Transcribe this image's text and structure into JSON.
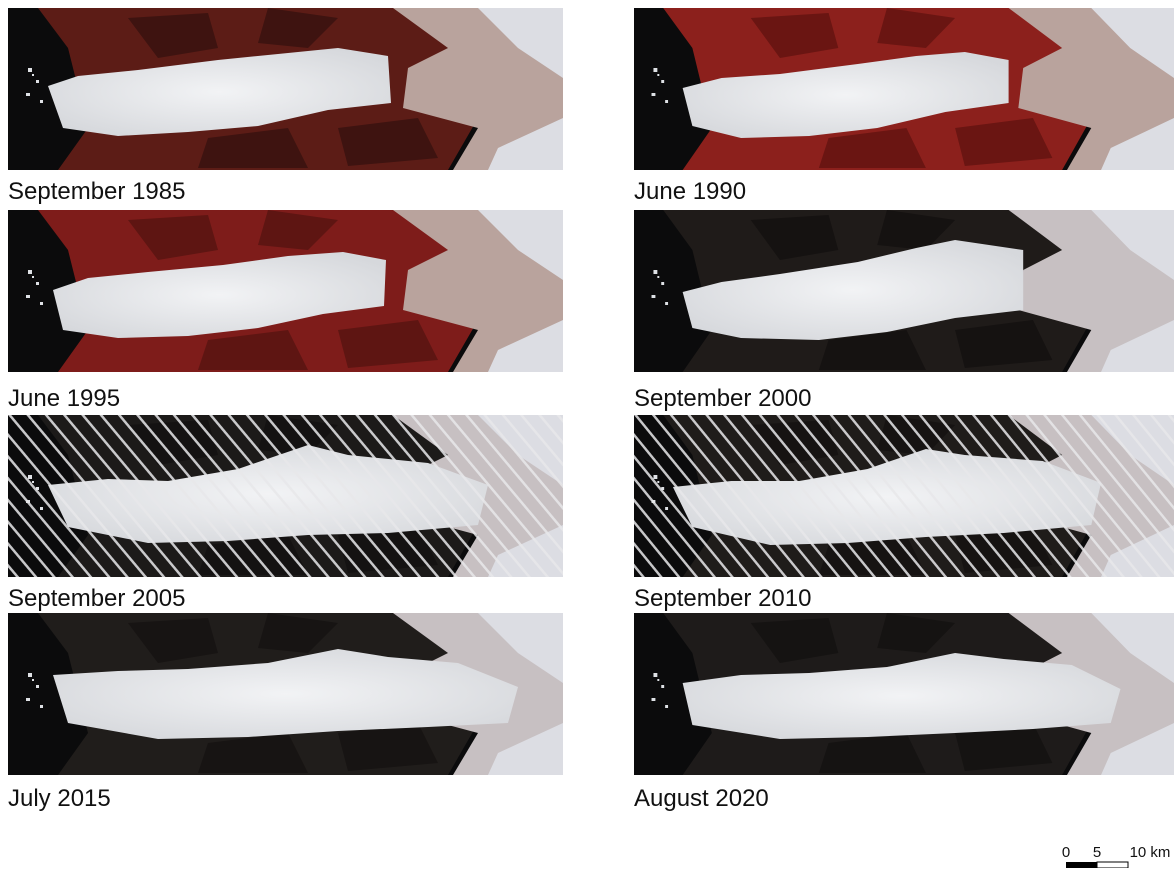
{
  "panels": [
    {
      "caption": "September 1985"
    },
    {
      "caption": "June 1990"
    },
    {
      "caption": "June 1995"
    },
    {
      "caption": "September 2000"
    },
    {
      "caption": "September 2005"
    },
    {
      "caption": "September 2010"
    },
    {
      "caption": "July 2015"
    },
    {
      "caption": "August 2020"
    }
  ],
  "scale_bar": {
    "labels": [
      "0",
      "5",
      "10 km"
    ]
  }
}
